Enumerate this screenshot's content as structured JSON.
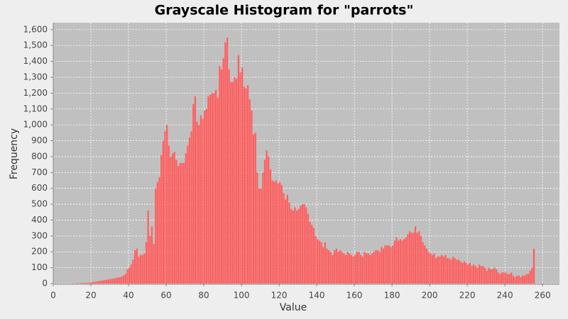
{
  "chart_data": {
    "type": "histogram",
    "title": "Grayscale Histogram for \"parrots\"",
    "x_label": "Value",
    "y_label": "Frequency",
    "color": "#ff5f5f",
    "background": "#c0c0c0",
    "grid": true,
    "xlim": [
      0,
      269
    ],
    "ylim": [
      0,
      1644
    ],
    "xticks": [
      0,
      20,
      40,
      60,
      80,
      100,
      120,
      140,
      160,
      180,
      200,
      220,
      240,
      260
    ],
    "yticks": [
      0,
      100,
      200,
      300,
      400,
      500,
      600,
      700,
      800,
      900,
      {
        "value": 1000,
        "label": "1,000"
      },
      {
        "value": 1100,
        "label": "1,100"
      },
      {
        "value": 1200,
        "label": "1,200"
      },
      {
        "value": 1300,
        "label": "1,300"
      },
      {
        "value": 1400,
        "label": "1,400"
      },
      {
        "value": 1500,
        "label": "1,500"
      },
      {
        "value": 1600,
        "label": "1,600"
      }
    ],
    "bins": [
      0,
      1,
      2,
      3,
      4,
      5,
      6,
      7,
      8,
      9,
      10,
      11,
      12,
      13,
      14,
      15,
      16,
      17,
      18,
      19,
      20,
      21,
      22,
      23,
      24,
      25,
      26,
      27,
      28,
      29,
      30,
      31,
      32,
      33,
      34,
      35,
      36,
      37,
      38,
      39,
      40,
      41,
      42,
      43,
      44,
      45,
      46,
      47,
      48,
      49,
      50,
      51,
      52,
      53,
      54,
      55,
      56,
      57,
      58,
      59,
      60,
      61,
      62,
      63,
      64,
      65,
      66,
      67,
      68,
      69,
      70,
      71,
      72,
      73,
      74,
      75,
      76,
      77,
      78,
      79,
      80,
      81,
      82,
      83,
      84,
      85,
      86,
      87,
      88,
      89,
      90,
      91,
      92,
      93,
      94,
      95,
      96,
      97,
      98,
      99,
      100,
      101,
      102,
      103,
      104,
      105,
      106,
      107,
      108,
      109,
      110,
      111,
      112,
      113,
      114,
      115,
      116,
      117,
      118,
      119,
      120,
      121,
      122,
      123,
      124,
      125,
      126,
      127,
      128,
      129,
      130,
      131,
      132,
      133,
      134,
      135,
      136,
      137,
      138,
      139,
      140,
      141,
      142,
      143,
      144,
      145,
      146,
      147,
      148,
      149,
      150,
      151,
      152,
      153,
      154,
      155,
      156,
      157,
      158,
      159,
      160,
      161,
      162,
      163,
      164,
      165,
      166,
      167,
      168,
      169,
      170,
      171,
      172,
      173,
      174,
      175,
      176,
      177,
      178,
      179,
      180,
      181,
      182,
      183,
      184,
      185,
      186,
      187,
      188,
      189,
      190,
      191,
      192,
      193,
      194,
      195,
      196,
      197,
      198,
      199,
      200,
      201,
      202,
      203,
      204,
      205,
      206,
      207,
      208,
      209,
      210,
      211,
      212,
      213,
      214,
      215,
      216,
      217,
      218,
      219,
      220,
      221,
      222,
      223,
      224,
      225,
      226,
      227,
      228,
      229,
      230,
      231,
      232,
      233,
      234,
      235,
      236,
      237,
      238,
      239,
      240,
      241,
      242,
      243,
      244,
      245,
      246,
      247,
      248,
      249,
      250,
      251,
      252,
      253,
      254,
      255,
      256
    ],
    "values": [
      0,
      0,
      0,
      0,
      0,
      0,
      0,
      0,
      0,
      0,
      1,
      1,
      2,
      2,
      3,
      3,
      4,
      4,
      5,
      6,
      8,
      10,
      12,
      14,
      16,
      18,
      20,
      22,
      24,
      26,
      28,
      30,
      32,
      35,
      38,
      40,
      45,
      50,
      60,
      90,
      100,
      120,
      150,
      210,
      220,
      170,
      180,
      180,
      190,
      260,
      460,
      300,
      360,
      250,
      600,
      640,
      670,
      810,
      900,
      960,
      1000,
      870,
      800,
      820,
      830,
      780,
      740,
      760,
      760,
      760,
      820,
      870,
      920,
      960,
      1130,
      1180,
      1020,
      1000,
      1060,
      1040,
      1090,
      1100,
      1180,
      1190,
      1200,
      1200,
      1220,
      1170,
      1370,
      1350,
      1420,
      1520,
      1550,
      1350,
      1270,
      1270,
      1300,
      1290,
      1440,
      1330,
      1360,
      1240,
      1230,
      1250,
      1160,
      1090,
      940,
      950,
      700,
      600,
      600,
      700,
      780,
      840,
      800,
      720,
      650,
      640,
      650,
      630,
      640,
      620,
      570,
      530,
      560,
      510,
      470,
      460,
      480,
      460,
      470,
      490,
      500,
      500,
      480,
      440,
      390,
      370,
      350,
      300,
      280,
      270,
      260,
      230,
      260,
      220,
      210,
      200,
      180,
      210,
      220,
      200,
      210,
      200,
      190,
      180,
      200,
      190,
      180,
      170,
      180,
      200,
      200,
      180,
      170,
      200,
      190,
      190,
      180,
      190,
      200,
      210,
      210,
      200,
      230,
      220,
      240,
      240,
      240,
      230,
      240,
      270,
      290,
      270,
      280,
      270,
      280,
      290,
      310,
      330,
      320,
      320,
      360,
      320,
      330,
      300,
      260,
      240,
      220,
      200,
      190,
      180,
      190,
      160,
      170,
      170,
      180,
      170,
      180,
      160,
      160,
      150,
      170,
      160,
      150,
      150,
      140,
      130,
      140,
      130,
      120,
      130,
      110,
      120,
      110,
      100,
      120,
      110,
      110,
      100,
      80,
      100,
      90,
      90,
      100,
      90,
      70,
      60,
      70,
      70,
      70,
      60,
      60,
      70,
      50,
      40,
      50,
      50,
      40,
      50,
      50,
      60,
      60,
      80,
      100,
      220
    ]
  }
}
